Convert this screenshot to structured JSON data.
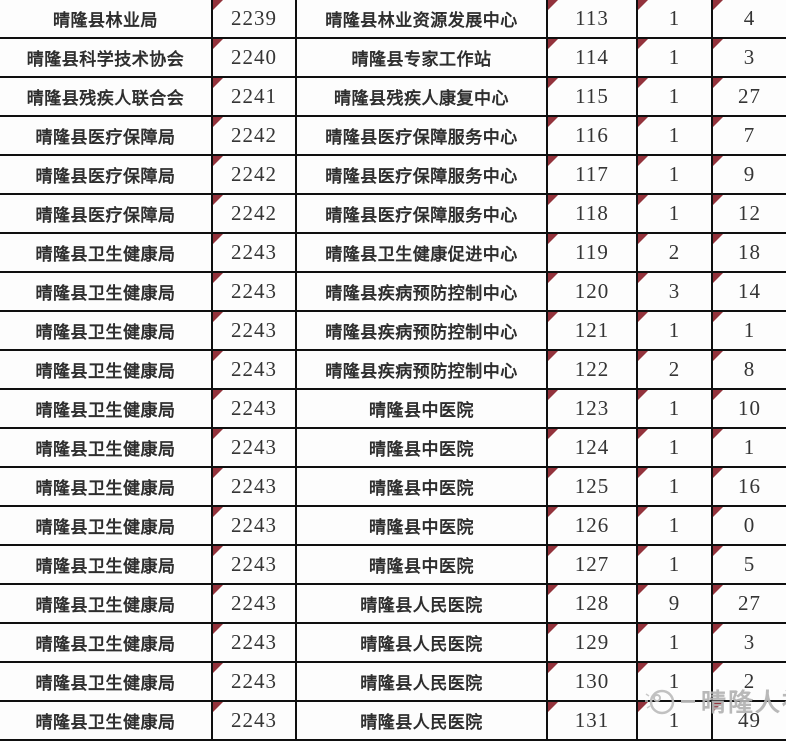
{
  "table": {
    "marker_columns": [
      1,
      3,
      4,
      5
    ],
    "rows": [
      [
        "晴隆县林业局",
        "2239",
        "晴隆县林业资源发展中心",
        "113",
        "1",
        "4"
      ],
      [
        "晴隆县科学技术协会",
        "2240",
        "晴隆县专家工作站",
        "114",
        "1",
        "3"
      ],
      [
        "晴隆县残疾人联合会",
        "2241",
        "晴隆县残疾人康复中心",
        "115",
        "1",
        "27"
      ],
      [
        "晴隆县医疗保障局",
        "2242",
        "晴隆县医疗保障服务中心",
        "116",
        "1",
        "7"
      ],
      [
        "晴隆县医疗保障局",
        "2242",
        "晴隆县医疗保障服务中心",
        "117",
        "1",
        "9"
      ],
      [
        "晴隆县医疗保障局",
        "2242",
        "晴隆县医疗保障服务中心",
        "118",
        "1",
        "12"
      ],
      [
        "晴隆县卫生健康局",
        "2243",
        "晴隆县卫生健康促进中心",
        "119",
        "2",
        "18"
      ],
      [
        "晴隆县卫生健康局",
        "2243",
        "晴隆县疾病预防控制中心",
        "120",
        "3",
        "14"
      ],
      [
        "晴隆县卫生健康局",
        "2243",
        "晴隆县疾病预防控制中心",
        "121",
        "1",
        "1"
      ],
      [
        "晴隆县卫生健康局",
        "2243",
        "晴隆县疾病预防控制中心",
        "122",
        "2",
        "8"
      ],
      [
        "晴隆县卫生健康局",
        "2243",
        "晴隆县中医院",
        "123",
        "1",
        "10"
      ],
      [
        "晴隆县卫生健康局",
        "2243",
        "晴隆县中医院",
        "124",
        "1",
        "1"
      ],
      [
        "晴隆县卫生健康局",
        "2243",
        "晴隆县中医院",
        "125",
        "1",
        "16"
      ],
      [
        "晴隆县卫生健康局",
        "2243",
        "晴隆县中医院",
        "126",
        "1",
        "0"
      ],
      [
        "晴隆县卫生健康局",
        "2243",
        "晴隆县中医院",
        "127",
        "1",
        "5"
      ],
      [
        "晴隆县卫生健康局",
        "2243",
        "晴隆县人民医院",
        "128",
        "9",
        "27"
      ],
      [
        "晴隆县卫生健康局",
        "2243",
        "晴隆县人民医院",
        "129",
        "1",
        "3"
      ],
      [
        "晴隆县卫生健康局",
        "2243",
        "晴隆县人民医院",
        "130",
        "1",
        "2"
      ],
      [
        "晴隆县卫生健康局",
        "2243",
        "晴隆县人民医院",
        "131",
        "1",
        "49"
      ]
    ]
  },
  "watermark": {
    "text": "晴隆人社"
  },
  "colors": {
    "grid_line": "#0f0f0f",
    "marker_red": "#93333c",
    "watermark_gray": "#b3b3b3",
    "background": "#fdfdfd"
  }
}
